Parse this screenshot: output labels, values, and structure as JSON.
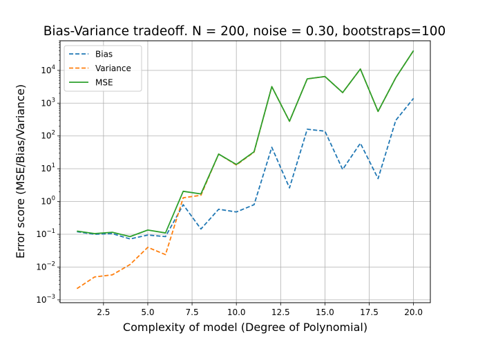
{
  "chart_data": {
    "type": "line",
    "title": "Bias-Variance tradeoff. N = 200, noise = 0.30, bootstraps=100",
    "xlabel": "Complexity of model (Degree of Polynomial)",
    "ylabel": "Error score (MSE/Bias/Variance)",
    "xlim": [
      0.05,
      20.95
    ],
    "ylim": [
      0.00082,
      80000
    ],
    "yscale": "log",
    "grid": true,
    "legend_position": "upper-left",
    "xticks": [
      2.5,
      5.0,
      7.5,
      10.0,
      12.5,
      15.0,
      17.5,
      20.0
    ],
    "xtick_labels": [
      "2.5",
      "5.0",
      "7.5",
      "10.0",
      "12.5",
      "15.0",
      "17.5",
      "20.0"
    ],
    "yticks": [
      {
        "value": 0.001,
        "base": "10",
        "exp": "−3"
      },
      {
        "value": 0.01,
        "base": "10",
        "exp": "−2"
      },
      {
        "value": 0.1,
        "base": "10",
        "exp": "−1"
      },
      {
        "value": 1,
        "base": "10",
        "exp": "0"
      },
      {
        "value": 10,
        "base": "10",
        "exp": "1"
      },
      {
        "value": 100,
        "base": "10",
        "exp": "2"
      },
      {
        "value": 1000,
        "base": "10",
        "exp": "3"
      },
      {
        "value": 10000,
        "base": "10",
        "exp": "4"
      }
    ],
    "x": [
      1,
      2,
      3,
      4,
      5,
      6,
      7,
      8,
      9,
      10,
      11,
      12,
      13,
      14,
      15,
      16,
      17,
      18,
      19,
      20
    ],
    "series": [
      {
        "name": "Bias",
        "color": "#1f77b4",
        "dashed": true,
        "values": [
          0.12,
          0.1,
          0.105,
          0.072,
          0.095,
          0.085,
          0.8,
          0.145,
          0.58,
          0.48,
          0.8,
          45,
          2.6,
          160,
          140,
          9.5,
          60,
          5,
          300,
          1400
        ]
      },
      {
        "name": "Variance",
        "color": "#ff7f0e",
        "dashed": true,
        "values": [
          0.0022,
          0.005,
          0.0058,
          0.012,
          0.04,
          0.024,
          1.3,
          1.55,
          28,
          13,
          32,
          3200,
          280,
          5500,
          6500,
          2100,
          11000,
          560,
          6000,
          40000
        ]
      },
      {
        "name": "MSE",
        "color": "#2ca02c",
        "dashed": false,
        "values": [
          0.125,
          0.105,
          0.115,
          0.085,
          0.135,
          0.11,
          2.05,
          1.7,
          28,
          13.5,
          33,
          3200,
          280,
          5500,
          6500,
          2100,
          11000,
          560,
          6000,
          40000
        ]
      }
    ]
  }
}
